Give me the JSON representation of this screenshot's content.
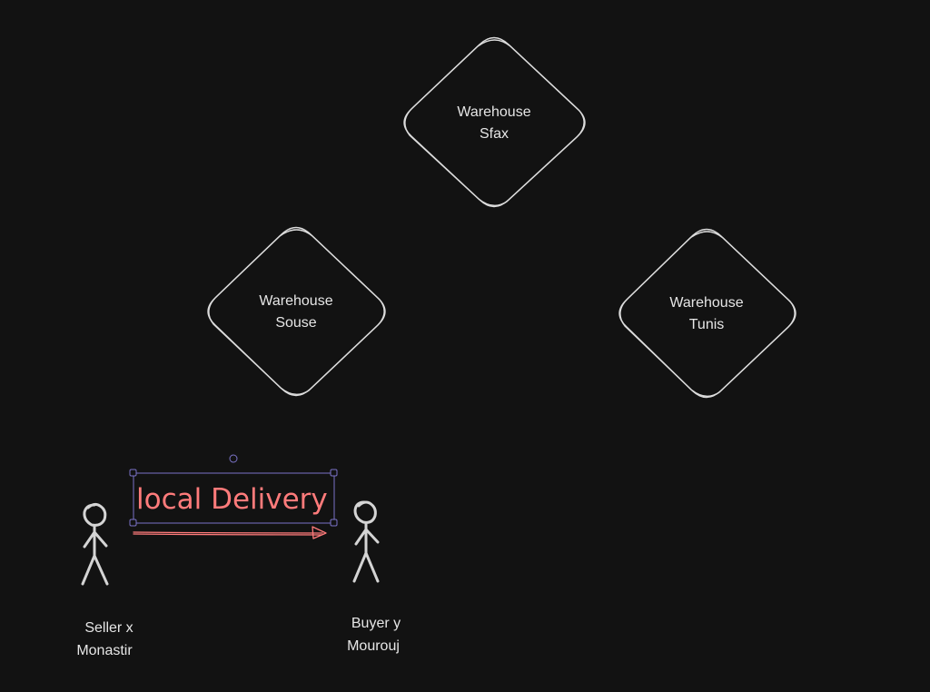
{
  "nodes": {
    "warehouse_sfax": {
      "line1": "Warehouse",
      "line2": "Sfax"
    },
    "warehouse_souse": {
      "line1": "Warehouse",
      "line2": "Souse"
    },
    "warehouse_tunis": {
      "line1": "Warehouse",
      "line2": "Tunis"
    },
    "seller": {
      "line1": "Seller x",
      "line2": "Monastir"
    },
    "buyer": {
      "line1": "Buyer y",
      "line2": "Mourouj"
    }
  },
  "edge": {
    "label": "local Delivery"
  },
  "colors": {
    "background": "#121212",
    "stroke": "#dcdcdc",
    "accent": "#ff7b7b",
    "selection": "#7b73c8"
  }
}
